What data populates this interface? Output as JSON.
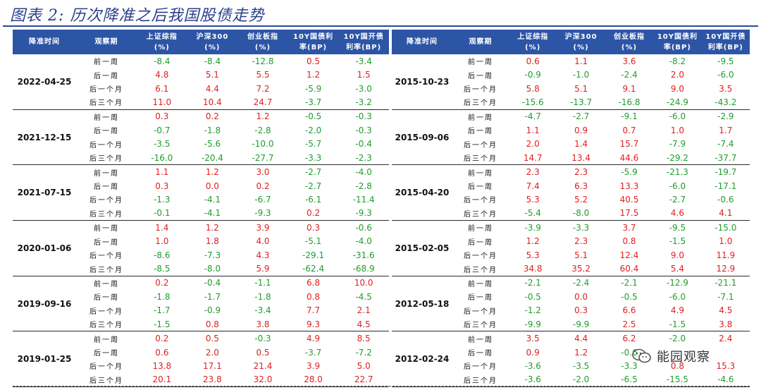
{
  "title": "图表 2: 历次降准之后我国股债走势",
  "headers": [
    "降准时间",
    "观察期",
    "上证综指\n(%)",
    "沪深300\n(%)",
    "创业板指\n(%)",
    "10Y国债利\n率(BP)",
    "10Y国开债\n利率(BP)"
  ],
  "periods": [
    "前一周",
    "后一周",
    "后一个月",
    "后三个月"
  ],
  "left_groups": [
    {
      "date": "2022-04-25",
      "rows": [
        [
          "-8.4",
          "-8.4",
          "-12.8",
          "0.5",
          "-3.4"
        ],
        [
          "4.8",
          "5.1",
          "5.5",
          "1.2",
          "1.5"
        ],
        [
          "6.1",
          "4.4",
          "7.2",
          "-5.9",
          "-3.0"
        ],
        [
          "11.0",
          "10.4",
          "24.7",
          "-3.7",
          "-3.2"
        ]
      ]
    },
    {
      "date": "2021-12-15",
      "rows": [
        [
          "0.3",
          "0.2",
          "1.2",
          "-0.5",
          "-0.3"
        ],
        [
          "-0.7",
          "-1.8",
          "-2.8",
          "-2.0",
          "-0.3"
        ],
        [
          "-3.5",
          "-5.6",
          "-10.0",
          "-5.7",
          "-0.4"
        ],
        [
          "-16.0",
          "-20.4",
          "-27.7",
          "-3.3",
          "-2.3"
        ]
      ]
    },
    {
      "date": "2021-07-15",
      "rows": [
        [
          "1.1",
          "1.2",
          "3.0",
          "-2.7",
          "-4.0"
        ],
        [
          "0.3",
          "0.0",
          "0.2",
          "-2.7",
          "-2.8"
        ],
        [
          "-1.3",
          "-4.1",
          "-6.7",
          "-6.1",
          "-11.4"
        ],
        [
          "-0.1",
          "-4.1",
          "-9.3",
          "0.2",
          "-9.3"
        ]
      ]
    },
    {
      "date": "2020-01-06",
      "rows": [
        [
          "1.4",
          "1.2",
          "3.9",
          "0.3",
          "-0.6"
        ],
        [
          "1.0",
          "1.8",
          "4.0",
          "-5.1",
          "-4.0"
        ],
        [
          "-8.6",
          "-7.3",
          "4.3",
          "-29.1",
          "-31.6"
        ],
        [
          "-8.5",
          "-8.0",
          "5.9",
          "-62.4",
          "-68.9"
        ]
      ]
    },
    {
      "date": "2019-09-16",
      "rows": [
        [
          "0.2",
          "-0.4",
          "-1.1",
          "6.8",
          "10.0"
        ],
        [
          "-1.8",
          "-1.7",
          "-1.8",
          "0.8",
          "-4.5"
        ],
        [
          "-1.7",
          "-0.9",
          "-3.4",
          "7.7",
          "2.1"
        ],
        [
          "-1.5",
          "0.8",
          "3.8",
          "9.3",
          "4.5"
        ]
      ]
    },
    {
      "date": "2019-01-25",
      "rows": [
        [
          "0.2",
          "0.5",
          "-0.3",
          "4.9",
          "8.5"
        ],
        [
          "0.6",
          "2.0",
          "0.5",
          "-3.7",
          "-7.2"
        ],
        [
          "13.8",
          "17.1",
          "21.4",
          "3.9",
          "5.0"
        ],
        [
          "20.1",
          "23.8",
          "32.0",
          "28.0",
          "22.7"
        ]
      ]
    }
  ],
  "right_groups": [
    {
      "date": "2015-10-23",
      "rows": [
        [
          "0.6",
          "1.1",
          "3.6",
          "-8.2",
          "-9.5"
        ],
        [
          "-0.9",
          "-1.0",
          "-2.4",
          "2.0",
          "-6.0"
        ],
        [
          "5.8",
          "5.1",
          "9.1",
          "9.0",
          "3.5"
        ],
        [
          "-15.6",
          "-13.7",
          "-16.8",
          "-24.9",
          "-43.2"
        ]
      ]
    },
    {
      "date": "2015-09-06",
      "rows": [
        [
          "-4.7",
          "-2.7",
          "-9.1",
          "-6.0",
          "-2.9"
        ],
        [
          "1.1",
          "0.9",
          "0.7",
          "1.0",
          "1.7"
        ],
        [
          "2.0",
          "1.4",
          "15.7",
          "-7.9",
          "-7.4"
        ],
        [
          "14.7",
          "13.4",
          "44.6",
          "-29.2",
          "-37.7"
        ]
      ]
    },
    {
      "date": "2015-04-20",
      "rows": [
        [
          "2.3",
          "2.3",
          "-5.9",
          "-21.3",
          "-19.7"
        ],
        [
          "7.4",
          "6.3",
          "13.3",
          "-6.0",
          "-17.1"
        ],
        [
          "5.3",
          "5.2",
          "40.5",
          "-2.7",
          "-0.6"
        ],
        [
          "-5.4",
          "-8.0",
          "17.5",
          "4.6",
          "4.1"
        ]
      ]
    },
    {
      "date": "2015-02-05",
      "rows": [
        [
          "-3.9",
          "-3.3",
          "3.7",
          "-9.5",
          "-15.0"
        ],
        [
          "1.2",
          "2.3",
          "0.8",
          "-1.5",
          "1.0"
        ],
        [
          "5.3",
          "5.1",
          "12.4",
          "9.0",
          "11.9"
        ],
        [
          "34.8",
          "35.2",
          "60.4",
          "5.4",
          "12.9"
        ]
      ]
    },
    {
      "date": "2012-05-18",
      "rows": [
        [
          "-2.1",
          "-2.4",
          "-2.1",
          "-12.9",
          "-21.1"
        ],
        [
          "-0.5",
          "0.0",
          "-0.5",
          "-6.0",
          "-7.1"
        ],
        [
          "-1.2",
          "0.3",
          "6.6",
          "4.9",
          "4.5"
        ],
        [
          "-9.9",
          "-9.9",
          "2.5",
          "-1.5",
          "3.8"
        ]
      ]
    },
    {
      "date": "2012-02-24",
      "rows": [
        [
          "3.5",
          "4.4",
          "6.2",
          "-2.0",
          "2.4"
        ],
        [
          "0.9",
          "1.2",
          "-0.6",
          "",
          ""
        ],
        [
          "-3.6",
          "-3.5",
          "-3.3",
          "0.8",
          "15.3"
        ],
        [
          "-3.6",
          "-2.0",
          "-6.5",
          "-15.5",
          "-4.6"
        ]
      ]
    }
  ],
  "watermark": "能园观察",
  "colors": {
    "header_bg": "#2d55a6",
    "title": "#2a3f8a",
    "positive": "#e02020",
    "negative": "#1f9d2b"
  }
}
